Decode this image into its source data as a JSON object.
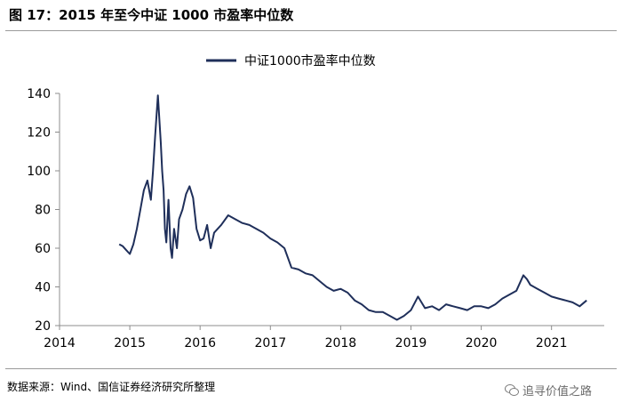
{
  "header": {
    "title": "图 17：2015 年至今中证 1000 市盈率中位数"
  },
  "footer": {
    "source": "数据来源：Wind、国信证券经济研究所整理",
    "watermark": "追寻价值之路"
  },
  "colors": {
    "series": "#1f2f5a",
    "axis": "#8c8c8c"
  },
  "icons": {
    "watermark": "wechat-icon"
  },
  "chart_data": {
    "type": "line",
    "title": "",
    "xlabel": "",
    "ylabel": "",
    "legend_position": "top-center",
    "grid": false,
    "xlim": [
      2014,
      2021.75
    ],
    "ylim": [
      20,
      140
    ],
    "x_ticks": [
      "2014",
      "2015",
      "2016",
      "2017",
      "2018",
      "2019",
      "2020",
      "2021"
    ],
    "y_ticks": [
      "20",
      "40",
      "60",
      "80",
      "100",
      "120",
      "140"
    ],
    "series": [
      {
        "name": "中证1000市盈率中位数",
        "x": [
          2014.85,
          2014.9,
          2014.95,
          2015.0,
          2015.05,
          2015.1,
          2015.15,
          2015.2,
          2015.25,
          2015.3,
          2015.33,
          2015.36,
          2015.4,
          2015.44,
          2015.46,
          2015.48,
          2015.5,
          2015.52,
          2015.55,
          2015.58,
          2015.6,
          2015.63,
          2015.67,
          2015.7,
          2015.75,
          2015.8,
          2015.85,
          2015.9,
          2015.95,
          2016.0,
          2016.05,
          2016.1,
          2016.15,
          2016.2,
          2016.3,
          2016.4,
          2016.5,
          2016.6,
          2016.7,
          2016.8,
          2016.9,
          2017.0,
          2017.1,
          2017.2,
          2017.3,
          2017.4,
          2017.5,
          2017.6,
          2017.7,
          2017.8,
          2017.9,
          2018.0,
          2018.1,
          2018.2,
          2018.3,
          2018.4,
          2018.5,
          2018.6,
          2018.7,
          2018.8,
          2018.9,
          2019.0,
          2019.1,
          2019.2,
          2019.3,
          2019.4,
          2019.5,
          2019.6,
          2019.7,
          2019.8,
          2019.9,
          2020.0,
          2020.1,
          2020.2,
          2020.3,
          2020.4,
          2020.5,
          2020.55,
          2020.6,
          2020.65,
          2020.7,
          2020.8,
          2020.9,
          2021.0,
          2021.1,
          2021.2,
          2021.3,
          2021.4,
          2021.5
        ],
        "values": [
          62,
          61,
          59,
          57,
          62,
          70,
          80,
          90,
          95,
          85,
          100,
          118,
          139,
          115,
          100,
          90,
          70,
          63,
          85,
          60,
          55,
          70,
          60,
          75,
          80,
          88,
          92,
          86,
          70,
          64,
          65,
          72,
          60,
          68,
          72,
          77,
          75,
          73,
          72,
          70,
          68,
          65,
          63,
          60,
          50,
          49,
          47,
          46,
          43,
          40,
          38,
          39,
          37,
          33,
          31,
          28,
          27,
          27,
          25,
          23,
          25,
          28,
          35,
          29,
          30,
          28,
          31,
          30,
          29,
          28,
          30,
          30,
          29,
          31,
          34,
          36,
          38,
          42,
          46,
          44,
          41,
          39,
          37,
          35,
          34,
          33,
          32,
          30,
          33
        ]
      }
    ]
  }
}
